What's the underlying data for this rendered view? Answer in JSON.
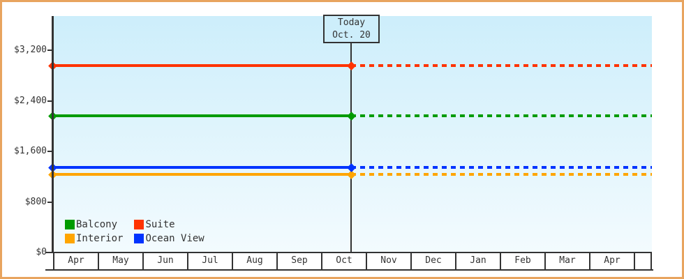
{
  "chart_data": {
    "type": "line",
    "title": "",
    "xlabel": "",
    "ylabel": "",
    "months": [
      "Apr",
      "May",
      "Jun",
      "Jul",
      "Aug",
      "Sep",
      "Oct",
      "Nov",
      "Dec",
      "Jan",
      "Feb",
      "Mar",
      "Apr"
    ],
    "y_ticks": [
      {
        "label": "$3,200",
        "value": 3200
      },
      {
        "label": "$2,400",
        "value": 2400
      },
      {
        "label": "$1,600",
        "value": 1600
      },
      {
        "label": "$800",
        "value": 800
      },
      {
        "label": "$0",
        "value": 0
      }
    ],
    "ylim": [
      0,
      3700
    ],
    "series": [
      {
        "name": "Balcony",
        "color": "#009b00",
        "value": 2160,
        "flat": true
      },
      {
        "name": "Suite",
        "color": "#ff3300",
        "value": 2960,
        "flat": true
      },
      {
        "name": "Interior",
        "color": "#ffa500",
        "value": 1240,
        "flat": true
      },
      {
        "name": "Ocean View",
        "color": "#0033ff",
        "value": 1350,
        "flat": true
      }
    ],
    "line_style_before_today": "solid",
    "line_style_after_today": "dashed",
    "marker_shape": "diamond",
    "today": {
      "line1": "Today",
      "line2": "Oct. 20",
      "month": "Oct"
    },
    "legend_position": "bottom-left",
    "grid": false
  },
  "colors": {
    "frame_border": "#e8a45f",
    "plot_top": "#cdeefb",
    "plot_bottom": "#f3fbfe",
    "axis": "#333333",
    "text": "#333333",
    "today_box_bg": "#cdeefb"
  }
}
